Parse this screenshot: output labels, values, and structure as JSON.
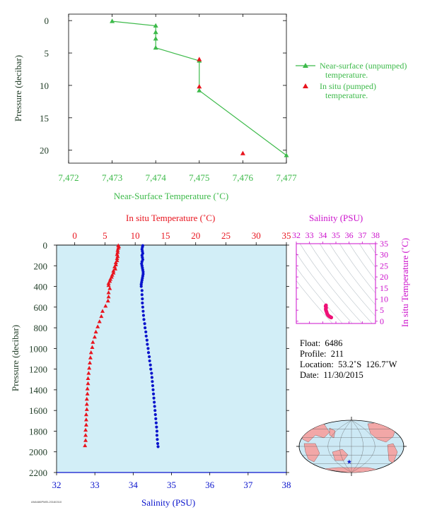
{
  "colors": {
    "green": "#3dba4a",
    "red": "#e8141e",
    "blue": "#0a14cc",
    "magenta": "#cc11cc",
    "axis_text": "#1f3b25",
    "plot_bg": "#d2eef7",
    "land": "#f2a7a7",
    "ocean_map": "#cde9f5"
  },
  "chart_data": [
    {
      "type": "line",
      "id": "near-surface",
      "xlabel": "Near-Surface Temperature (˚C)",
      "ylabel": "Pressure (decibar)",
      "xlim": [
        7.472,
        7.477
      ],
      "ylim": [
        22,
        -1
      ],
      "x_ticks": [
        "7,472",
        "7,473",
        "7,474",
        "7,475",
        "7,476",
        "7,477"
      ],
      "y_ticks": [
        "0",
        "5",
        "10",
        "15",
        "20"
      ],
      "series": [
        {
          "name": "Near-surface (unpumped) temperature.",
          "marker": "triangle",
          "points": [
            [
              7.473,
              0.1
            ],
            [
              7.474,
              0.8
            ],
            [
              7.474,
              1.8
            ],
            [
              7.474,
              2.8
            ],
            [
              7.474,
              4.2
            ],
            [
              7.475,
              6.2
            ],
            [
              7.475,
              10.8
            ],
            [
              7.477,
              20.8
            ]
          ]
        },
        {
          "name": "In situ (pumped) temperature.",
          "marker": "triangle",
          "points": [
            [
              7.475,
              6.0
            ],
            [
              7.475,
              10.2
            ],
            [
              7.476,
              20.5
            ]
          ]
        }
      ]
    },
    {
      "type": "scatter",
      "id": "profile",
      "ylabel": "Pressure (decibar)",
      "temp_label": "In situ Temperature (˚C)",
      "sal_label": "Salinity (PSU)",
      "temp_lim": [
        -3,
        35
      ],
      "sal_lim": [
        32,
        38
      ],
      "ylim": [
        2200,
        0
      ],
      "temp_ticks": [
        "0",
        "5",
        "10",
        "15",
        "20",
        "25",
        "30",
        "35"
      ],
      "sal_ticks": [
        "32",
        "33",
        "34",
        "35",
        "36",
        "37",
        "38"
      ],
      "y_ticks": [
        "0",
        "200",
        "400",
        "600",
        "800",
        "1000",
        "1200",
        "1400",
        "1600",
        "1800",
        "2000",
        "2200"
      ],
      "temperature": [
        [
          7.2,
          5
        ],
        [
          7.3,
          15
        ],
        [
          7.2,
          30
        ],
        [
          7.1,
          50
        ],
        [
          7.1,
          70
        ],
        [
          7.0,
          90
        ],
        [
          7.1,
          110
        ],
        [
          7.0,
          130
        ],
        [
          7.0,
          150
        ],
        [
          6.8,
          170
        ],
        [
          6.8,
          190
        ],
        [
          6.6,
          210
        ],
        [
          6.7,
          230
        ],
        [
          6.4,
          250
        ],
        [
          6.4,
          270
        ],
        [
          6.2,
          290
        ],
        [
          6.1,
          310
        ],
        [
          5.9,
          330
        ],
        [
          5.8,
          350
        ],
        [
          5.6,
          370
        ],
        [
          5.6,
          390
        ],
        [
          5.8,
          420
        ],
        [
          5.6,
          460
        ],
        [
          5.6,
          500
        ],
        [
          5.5,
          540
        ],
        [
          5.1,
          590
        ],
        [
          4.6,
          640
        ],
        [
          4.4,
          690
        ],
        [
          4.1,
          740
        ],
        [
          3.8,
          790
        ],
        [
          3.5,
          840
        ],
        [
          3.3,
          890
        ],
        [
          3.0,
          940
        ],
        [
          2.9,
          990
        ],
        [
          2.7,
          1040
        ],
        [
          2.6,
          1090
        ],
        [
          2.5,
          1140
        ],
        [
          2.4,
          1190
        ],
        [
          2.3,
          1240
        ],
        [
          2.2,
          1290
        ],
        [
          2.2,
          1340
        ],
        [
          2.1,
          1390
        ],
        [
          2.1,
          1440
        ],
        [
          2.0,
          1490
        ],
        [
          2.0,
          1540
        ],
        [
          2.0,
          1590
        ],
        [
          1.9,
          1640
        ],
        [
          1.9,
          1690
        ],
        [
          1.9,
          1740
        ],
        [
          1.8,
          1790
        ],
        [
          1.8,
          1840
        ],
        [
          1.8,
          1890
        ],
        [
          1.7,
          1940
        ]
      ],
      "salinity": [
        [
          34.25,
          5
        ],
        [
          34.24,
          20
        ],
        [
          34.23,
          40
        ],
        [
          34.24,
          60
        ],
        [
          34.25,
          80
        ],
        [
          34.23,
          100
        ],
        [
          34.24,
          120
        ],
        [
          34.25,
          140
        ],
        [
          34.23,
          160
        ],
        [
          34.22,
          180
        ],
        [
          34.23,
          200
        ],
        [
          34.24,
          220
        ],
        [
          34.25,
          240
        ],
        [
          34.26,
          260
        ],
        [
          34.26,
          280
        ],
        [
          34.25,
          300
        ],
        [
          34.24,
          320
        ],
        [
          34.23,
          340
        ],
        [
          34.22,
          360
        ],
        [
          34.21,
          380
        ],
        [
          34.21,
          400
        ],
        [
          34.23,
          440
        ],
        [
          34.23,
          480
        ],
        [
          34.24,
          520
        ],
        [
          34.24,
          560
        ],
        [
          34.25,
          600
        ],
        [
          34.26,
          640
        ],
        [
          34.27,
          680
        ],
        [
          34.28,
          720
        ],
        [
          34.3,
          760
        ],
        [
          34.31,
          800
        ],
        [
          34.33,
          840
        ],
        [
          34.34,
          880
        ],
        [
          34.36,
          920
        ],
        [
          34.37,
          960
        ],
        [
          34.39,
          1000
        ],
        [
          34.4,
          1040
        ],
        [
          34.42,
          1080
        ],
        [
          34.43,
          1120
        ],
        [
          34.45,
          1160
        ],
        [
          34.46,
          1200
        ],
        [
          34.48,
          1240
        ],
        [
          34.49,
          1280
        ],
        [
          34.5,
          1320
        ],
        [
          34.51,
          1360
        ],
        [
          34.52,
          1400
        ],
        [
          34.53,
          1440
        ],
        [
          34.54,
          1480
        ],
        [
          34.55,
          1520
        ],
        [
          34.56,
          1560
        ],
        [
          34.57,
          1600
        ],
        [
          34.58,
          1640
        ],
        [
          34.59,
          1680
        ],
        [
          34.6,
          1720
        ],
        [
          34.61,
          1760
        ],
        [
          34.62,
          1800
        ],
        [
          34.62,
          1840
        ],
        [
          34.63,
          1880
        ],
        [
          34.64,
          1920
        ],
        [
          34.65,
          1950
        ]
      ]
    },
    {
      "type": "scatter",
      "id": "ts-diagram",
      "title": "Salinity (PSU)",
      "ylabel": "In situ Temperature (˚C)",
      "xlim": [
        32,
        38
      ],
      "ylim": [
        -1,
        35
      ],
      "x_ticks": [
        "32",
        "33",
        "34",
        "35",
        "36",
        "37",
        "38"
      ],
      "y_ticks": [
        "0",
        "5",
        "10",
        "15",
        "20",
        "25",
        "30",
        "35"
      ],
      "points": [
        [
          34.25,
          7.2
        ],
        [
          34.24,
          7.0
        ],
        [
          34.22,
          6.8
        ],
        [
          34.24,
          6.4
        ],
        [
          34.26,
          6.0
        ],
        [
          34.23,
          5.6
        ],
        [
          34.24,
          5.1
        ],
        [
          34.27,
          4.6
        ],
        [
          34.3,
          4.1
        ],
        [
          34.33,
          3.5
        ],
        [
          34.37,
          3.0
        ],
        [
          34.42,
          2.6
        ],
        [
          34.48,
          2.3
        ],
        [
          34.53,
          2.1
        ],
        [
          34.58,
          1.9
        ],
        [
          34.62,
          1.8
        ],
        [
          34.65,
          1.7
        ]
      ]
    }
  ],
  "float_info": {
    "float": "Float:  6486",
    "profile": "Profile:  211",
    "location": "Location:  53.2˚S  126.7˚W",
    "date": "Date:  11/30/2015"
  },
  "map": {
    "marker_icon": "star-icon",
    "lon": -126.7,
    "lat": -53.2
  },
  "footer_code": "AN6486PMEL20160310"
}
